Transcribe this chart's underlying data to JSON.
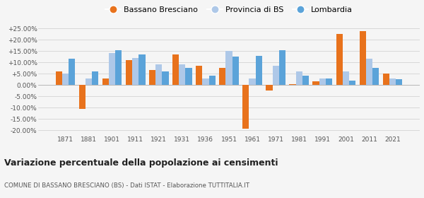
{
  "years": [
    1871,
    1881,
    1901,
    1911,
    1921,
    1931,
    1936,
    1951,
    1961,
    1971,
    1981,
    1991,
    2001,
    2011,
    2021
  ],
  "bassano": [
    6.0,
    -10.5,
    3.0,
    11.0,
    6.5,
    13.5,
    8.5,
    7.5,
    -19.5,
    -2.5,
    0.5,
    1.5,
    22.5,
    24.0,
    5.0
  ],
  "provincia": [
    5.0,
    3.0,
    14.0,
    12.0,
    9.0,
    9.0,
    3.0,
    15.0,
    3.0,
    8.5,
    6.0,
    3.0,
    6.0,
    11.5,
    3.0
  ],
  "lombardia": [
    11.5,
    6.0,
    15.5,
    13.5,
    6.0,
    7.5,
    4.0,
    12.5,
    13.0,
    15.5,
    4.0,
    3.0,
    2.0,
    7.5,
    2.5
  ],
  "color_bassano": "#e8721c",
  "color_provincia": "#aec8e8",
  "color_lombardia": "#5ba3d9",
  "title": "Variazione percentuale della popolazione ai censimenti",
  "subtitle": "COMUNE DI BASSANO BRESCIANO (BS) - Dati ISTAT - Elaborazione TUTTITALIA.IT",
  "ylim": [
    -22,
    28
  ],
  "yticks": [
    -20,
    -15,
    -10,
    -5,
    0,
    5,
    10,
    15,
    20,
    25
  ],
  "ytick_labels": [
    "-20.00%",
    "-15.00%",
    "-10.00%",
    "-5.00%",
    "0.00%",
    "+5.00%",
    "+10.00%",
    "+15.00%",
    "+20.00%",
    "+25.00%"
  ],
  "legend_labels": [
    "Bassano Bresciano",
    "Provincia di BS",
    "Lombardia"
  ],
  "background_color": "#f5f5f5"
}
